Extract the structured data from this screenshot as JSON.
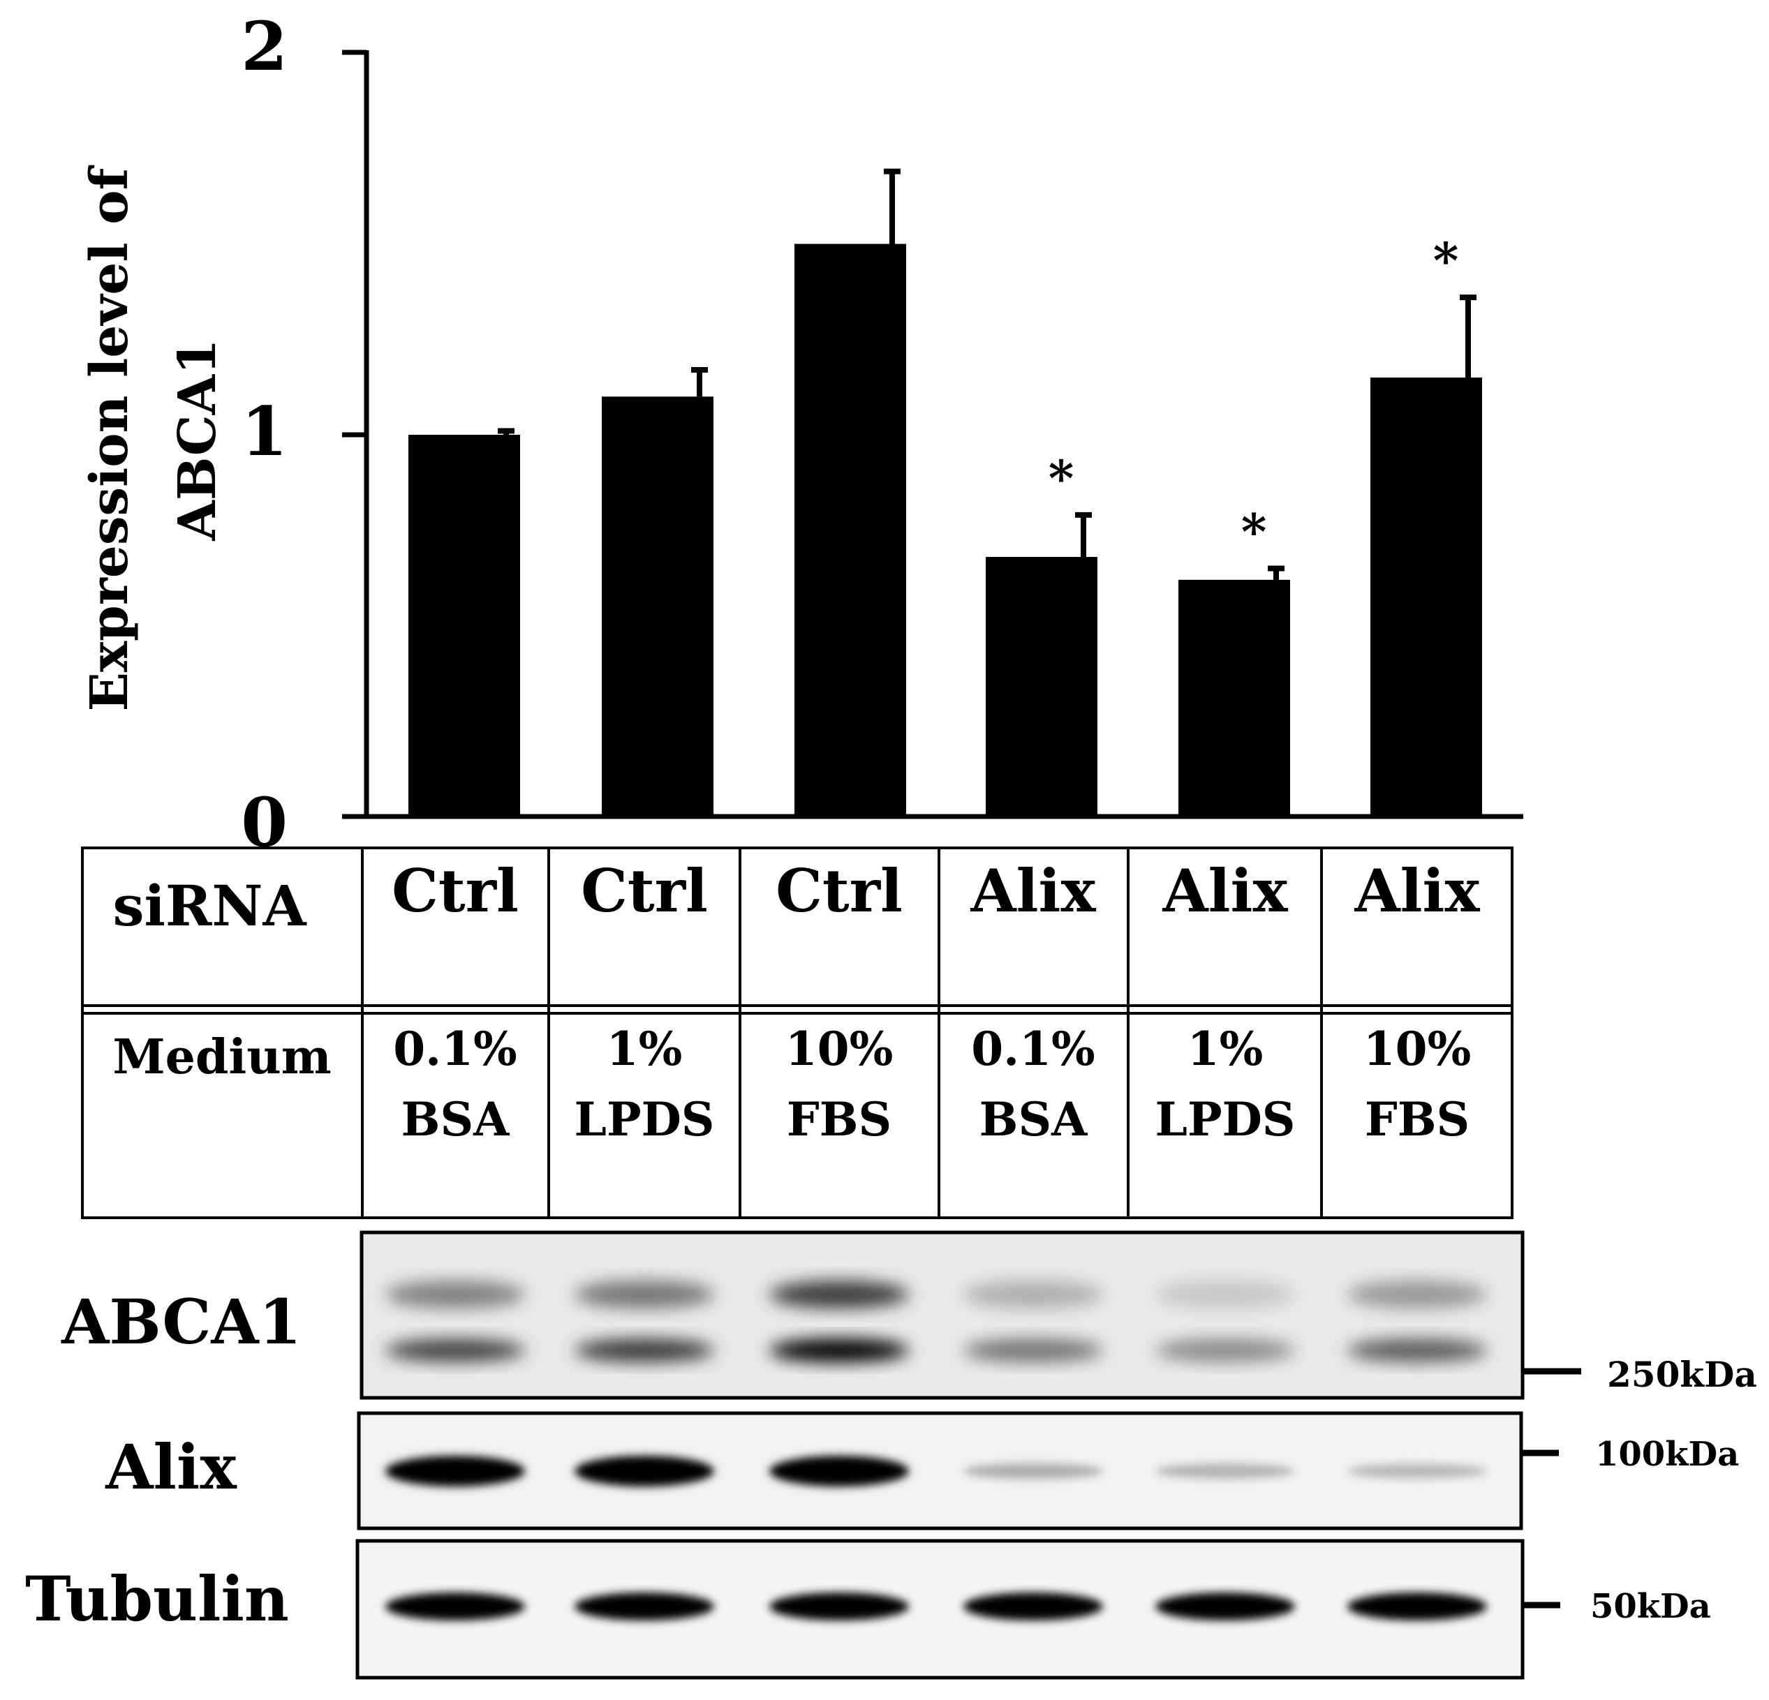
{
  "chart_data": {
    "type": "bar",
    "ylabel_lines": [
      "Expression level of",
      "ABCA1"
    ],
    "yticks": [
      "0",
      "1",
      "2"
    ],
    "ylim": [
      0,
      2
    ],
    "grid": false,
    "bar_color": "#000000",
    "bars": [
      {
        "value": 1.0,
        "error": 0.01,
        "sig": ""
      },
      {
        "value": 1.1,
        "error": 0.07,
        "sig": ""
      },
      {
        "value": 1.5,
        "error": 0.19,
        "sig": ""
      },
      {
        "value": 0.68,
        "error": 0.11,
        "sig": "*"
      },
      {
        "value": 0.62,
        "error": 0.03,
        "sig": "*"
      },
      {
        "value": 1.15,
        "error": 0.21,
        "sig": "*"
      }
    ]
  },
  "table": {
    "row1_label": "siRNA",
    "row1": [
      "Ctrl",
      "Ctrl",
      "Ctrl",
      "Alix",
      "Alix",
      "Alix"
    ],
    "row2_label": "Medium",
    "row2": [
      [
        "0.1%",
        "BSA"
      ],
      [
        "1%",
        "LPDS"
      ],
      [
        "10%",
        "FBS"
      ],
      [
        "0.1%",
        "BSA"
      ],
      [
        "1%",
        "LPDS"
      ],
      [
        "10%",
        "FBS"
      ]
    ]
  },
  "blots": [
    {
      "label": "ABCA1",
      "marker": "250kDa",
      "intensity": [
        0.7,
        0.75,
        1.0,
        0.5,
        0.4,
        0.6
      ]
    },
    {
      "label": "Alix",
      "marker": "100kDa",
      "intensity": [
        1.0,
        1.0,
        1.0,
        0.25,
        0.22,
        0.2
      ]
    },
    {
      "label": "Tubulin",
      "marker": "50kDa",
      "intensity": [
        1.0,
        1.0,
        1.0,
        1.0,
        1.0,
        1.0
      ]
    }
  ]
}
